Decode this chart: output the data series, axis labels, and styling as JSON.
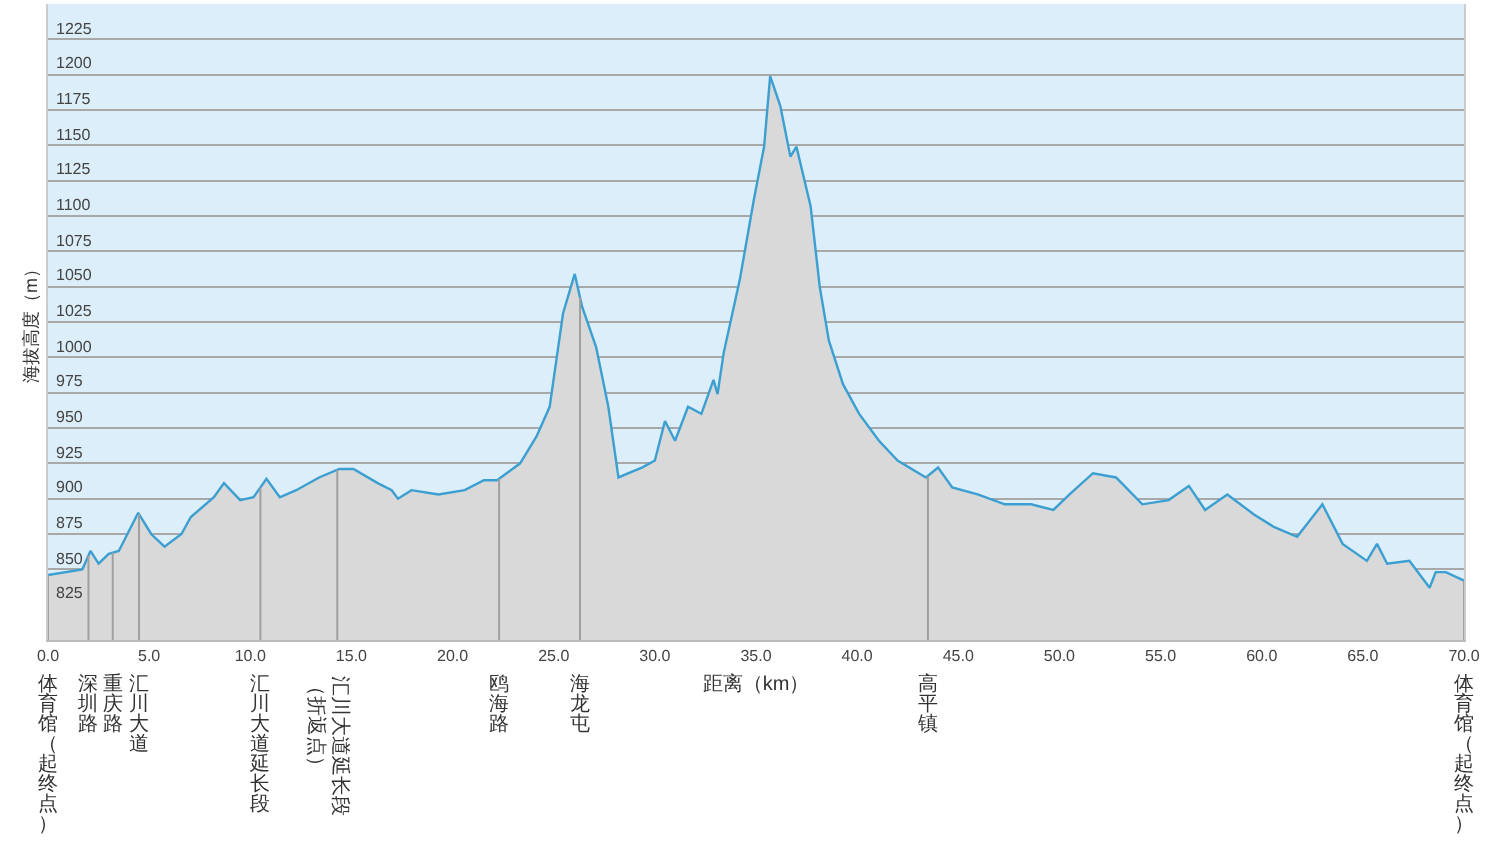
{
  "chart_data": {
    "type": "area",
    "xlabel": "距离（km）",
    "ylabel": "海拔高度（m）",
    "x": [
      0,
      1.7,
      2.1,
      2.5,
      3.0,
      3.5,
      4.46,
      5.1,
      5.76,
      6.6,
      7.06,
      8.2,
      8.7,
      9.5,
      10.16,
      10.8,
      11.46,
      12.27,
      13.4,
      14.4,
      15.1,
      16.3,
      16.99,
      17.3,
      17.97,
      19.3,
      20.6,
      21.55,
      22.2,
      23.34,
      24.15,
      24.8,
      25.46,
      26.04,
      26.4,
      27.1,
      27.7,
      28.2,
      28.7,
      29.36,
      30.0,
      30.5,
      31.0,
      31.64,
      32.3,
      32.9,
      33.1,
      33.4,
      34.2,
      34.9,
      35.4,
      35.7,
      36.2,
      36.7,
      37.0,
      37.7,
      38.15,
      38.6,
      39.3,
      40.1,
      41.08,
      42.0,
      43.4,
      44.0,
      44.7,
      45.96,
      47.3,
      48.6,
      49.7,
      50.5,
      51.66,
      52.8,
      54.1,
      55.4,
      56.4,
      57.2,
      58.3,
      59.6,
      60.6,
      61.75,
      63.0,
      64.0,
      65.2,
      65.7,
      66.2,
      67.3,
      68.3,
      68.6,
      69.1,
      70.0
    ],
    "series": [
      {
        "color": "#3b9fd1",
        "values": [
          846,
          850,
          863,
          854,
          861,
          863,
          890,
          875,
          866,
          875,
          887,
          901,
          911,
          899,
          901,
          914,
          901,
          906,
          915,
          921,
          921,
          911,
          906,
          900,
          906,
          903,
          906,
          913,
          913,
          925,
          944,
          965,
          1031,
          1059,
          1036,
          1007,
          965,
          915,
          918,
          922,
          927,
          955,
          941,
          965,
          960,
          984,
          974,
          1003,
          1055,
          1112,
          1149,
          1199,
          1178,
          1142,
          1149,
          1107,
          1050,
          1012,
          981,
          960,
          941,
          927,
          915,
          922,
          908,
          903,
          896,
          896,
          892,
          903,
          918,
          915,
          896,
          899,
          909,
          892,
          903,
          889,
          880,
          873,
          896,
          868,
          856,
          868,
          854,
          856,
          837,
          848,
          848,
          842
        ]
      }
    ],
    "xlim": [
      0,
      70
    ],
    "xticks": [
      {
        "value": 0,
        "label": "0.0"
      },
      {
        "value": 5,
        "label": "5.0"
      },
      {
        "value": 10,
        "label": "10.0"
      },
      {
        "value": 15,
        "label": "15.0"
      },
      {
        "value": 20,
        "label": "20.0"
      },
      {
        "value": 25,
        "label": "25.0"
      },
      {
        "value": 30,
        "label": "30.0"
      },
      {
        "value": 35,
        "label": "35.0"
      },
      {
        "value": 40,
        "label": "40.0"
      },
      {
        "value": 45,
        "label": "45.0"
      },
      {
        "value": 50,
        "label": "50.0"
      },
      {
        "value": 55,
        "label": "55.0"
      },
      {
        "value": 60,
        "label": "60.0"
      },
      {
        "value": 65,
        "label": "65.0"
      },
      {
        "value": 70,
        "label": "70.0"
      }
    ],
    "ylim": [
      800,
      1250
    ],
    "yticks": [
      825,
      850,
      875,
      900,
      925,
      950,
      975,
      1000,
      1025,
      1050,
      1075,
      1100,
      1125,
      1150,
      1175,
      1200,
      1225
    ],
    "grid": "y",
    "ref_lines": [
      {
        "axis": "x",
        "value": 0,
        "label": "体育馆（起终点）",
        "color": "#a0a0a0"
      },
      {
        "axis": "x",
        "value": 2.0,
        "label": "深圳路",
        "color": "#a0a0a0"
      },
      {
        "axis": "x",
        "value": 3.2,
        "label": "重庆路",
        "color": "#a0a0a0"
      },
      {
        "axis": "x",
        "value": 4.5,
        "label": "汇川大道",
        "color": "#a0a0a0"
      },
      {
        "axis": "x",
        "value": 10.5,
        "label": "汇川大道延长段",
        "color": "#a0a0a0"
      },
      {
        "axis": "x",
        "value": 14.3,
        "label": "汇川大道延长段（折返点）",
        "color": "#a0a0a0"
      },
      {
        "axis": "x",
        "value": 22.3,
        "label": "鸥海路",
        "color": "#a0a0a0"
      },
      {
        "axis": "x",
        "value": 26.3,
        "label": "海龙屯",
        "color": "#a0a0a0"
      },
      {
        "axis": "x",
        "value": 43.5,
        "label": "高平镇",
        "color": "#a0a0a0"
      },
      {
        "axis": "x",
        "value": 70,
        "label": "体育馆（起终点）",
        "color": "#a0a0a0"
      }
    ]
  }
}
